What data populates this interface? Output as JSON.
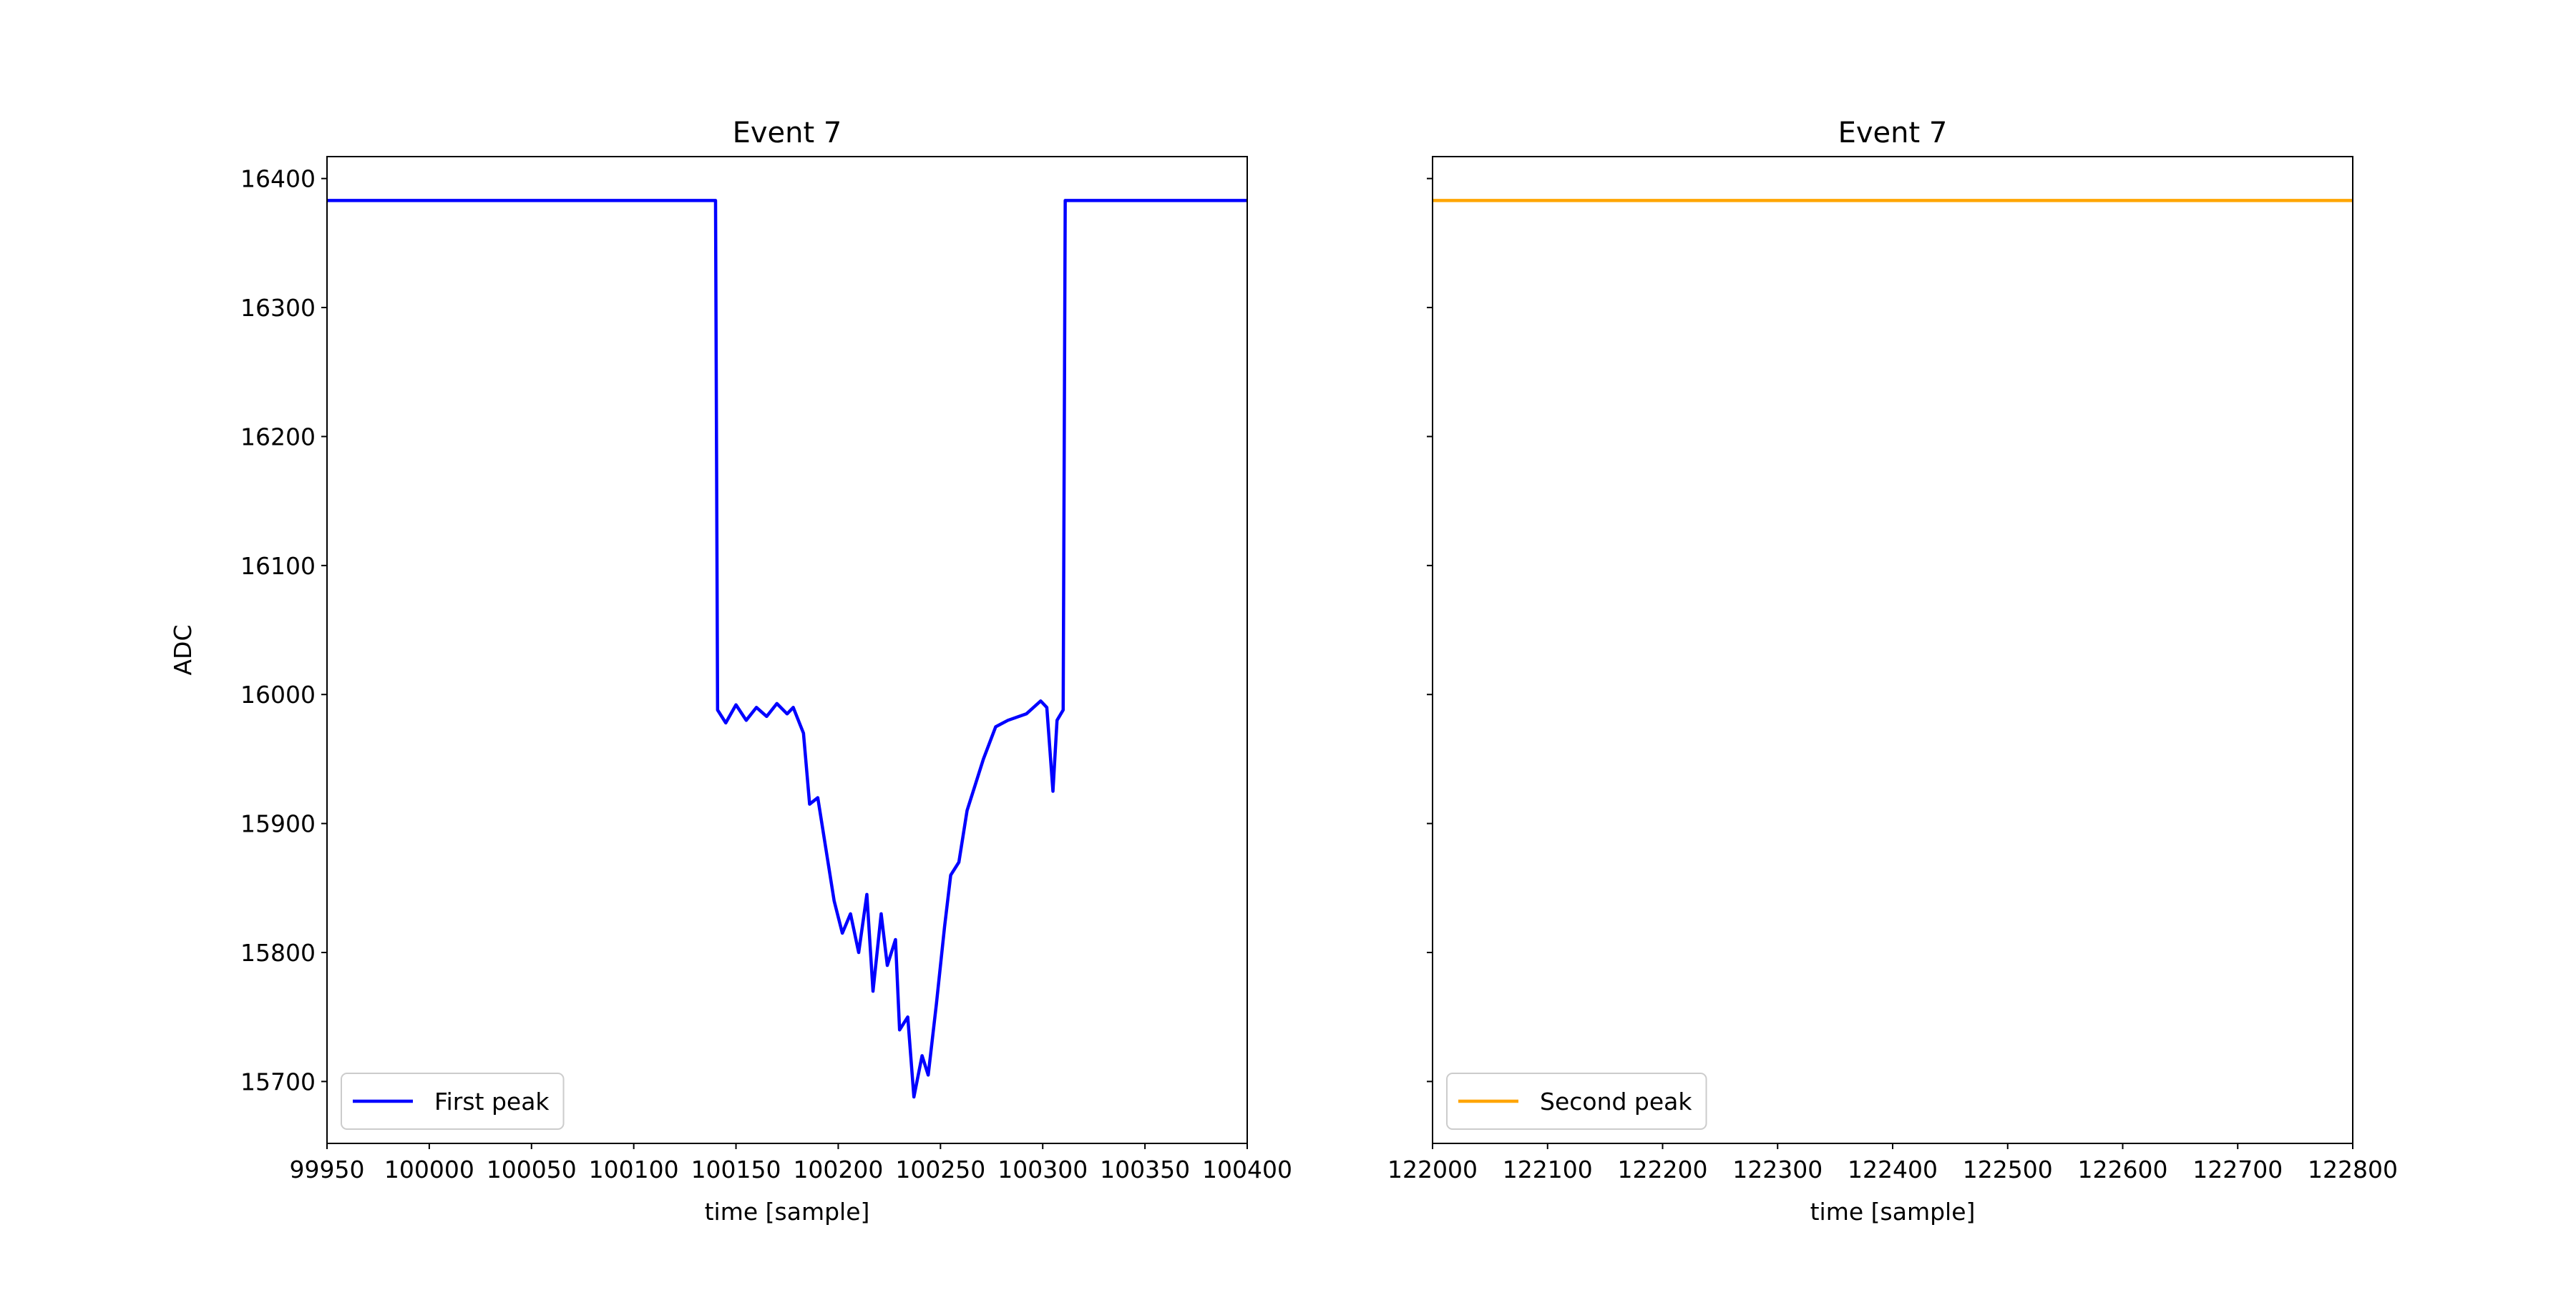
{
  "chart_data": [
    {
      "type": "line",
      "title": "Event 7",
      "x_label": "time [sample]",
      "y_label": "ADC",
      "x": [
        99950,
        100140,
        100141,
        100145,
        100150,
        100155,
        100160,
        100165,
        100170,
        100175,
        100178,
        100183,
        100186,
        100190,
        100194,
        100198,
        100202,
        100206,
        100210,
        100214,
        100217,
        100221,
        100224,
        100228,
        100230,
        100234,
        100237,
        100241,
        100244,
        100248,
        100252,
        100255,
        100259,
        100263,
        100267,
        100271,
        100277,
        100283,
        100292,
        100299,
        100302,
        100305,
        100307,
        100310,
        100311,
        100400
      ],
      "series": [
        {
          "name": "First peak",
          "color": "#0000ff",
          "values": [
            16383,
            16383,
            15988,
            15978,
            15992,
            15980,
            15990,
            15983,
            15993,
            15985,
            15990,
            15970,
            15915,
            15920,
            15880,
            15840,
            15815,
            15830,
            15800,
            15845,
            15770,
            15830,
            15790,
            15810,
            15740,
            15750,
            15688,
            15720,
            15705,
            15760,
            15820,
            15860,
            15870,
            15910,
            15930,
            15950,
            15975,
            15980,
            15985,
            15995,
            15990,
            15925,
            15980,
            15988,
            16383,
            16383
          ]
        }
      ],
      "xlim": [
        99950,
        100400
      ],
      "xticks": [
        99950,
        100000,
        100050,
        100100,
        100150,
        100200,
        100250,
        100300,
        100350,
        100400
      ],
      "ylim": [
        15652,
        16417
      ],
      "yticks": [
        15700,
        15800,
        15900,
        16000,
        16100,
        16200,
        16300,
        16400
      ],
      "legend": "lower left"
    },
    {
      "type": "line",
      "title": "Event 7",
      "x_label": "time [sample]",
      "x": [
        122000,
        122800
      ],
      "series": [
        {
          "name": "Second peak",
          "color": "#ffa500",
          "values": [
            16383,
            16383
          ]
        }
      ],
      "xlim": [
        122000,
        122800
      ],
      "xticks": [
        122000,
        122100,
        122200,
        122300,
        122400,
        122500,
        122600,
        122700,
        122800
      ],
      "ylim": [
        15652,
        16417
      ],
      "legend": "lower left"
    }
  ]
}
